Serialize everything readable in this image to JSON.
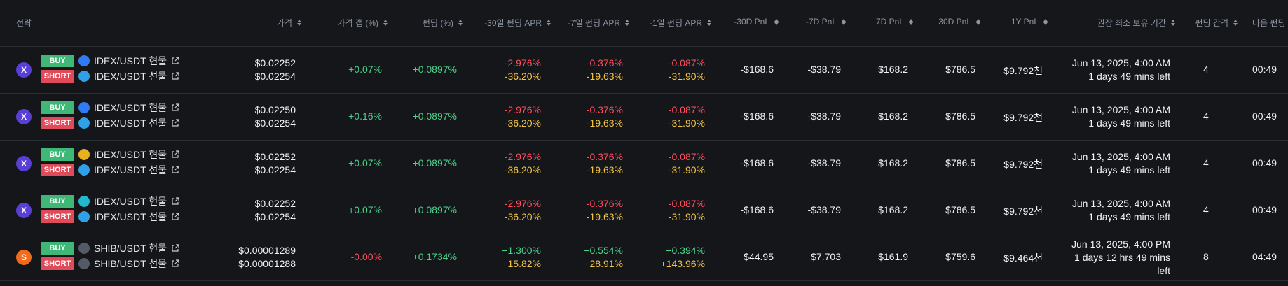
{
  "header": {
    "strategy": "전략",
    "price": "가격",
    "price_gap": "가격 갭 (%)",
    "funding": "펀딩 (%)",
    "apr30": "-30일 펀딩 APR",
    "apr7": "-7일 펀딩 APR",
    "apr1": "-1일 펀딩 APR",
    "pnl30neg": "-30D PnL",
    "pnl7neg": "-7D PnL",
    "pnl7": "7D PnL",
    "pnl30": "30D PnL",
    "pnl1y": "1Y PnL",
    "hold": "권장 최소 보유 기간",
    "interval": "펀딩 간격",
    "next": "다음 펀딩"
  },
  "rows": [
    {
      "proto_glyph": "X",
      "buy_label": "BUY",
      "short_label": "SHORT",
      "buy_pair": "IDEX/USDT 현물",
      "short_pair": "IDEX/USDT 선물",
      "buy_coin_color": "#2f7bf6",
      "short_coin_color": "#2fa1e8",
      "price1": "$0.02252",
      "price2": "$0.02254",
      "gap": "+0.07%",
      "funding": "+0.0897%",
      "apr30a": "-2.976%",
      "apr30b": "-36.20%",
      "apr7a": "-0.376%",
      "apr7b": "-19.63%",
      "apr1a": "-0.087%",
      "apr1b": "-31.90%",
      "pnl30neg": "-$168.6",
      "pnl7neg": "-$38.79",
      "pnl7": "$168.2",
      "pnl30": "$786.5",
      "pnl1y": "$9.792천",
      "hold1": "Jun 13, 2025, 4:00 AM",
      "hold2": "1 days 49 mins left",
      "interval": "4",
      "next": "00:49"
    },
    {
      "proto_glyph": "X",
      "buy_label": "BUY",
      "short_label": "SHORT",
      "buy_pair": "IDEX/USDT 현물",
      "short_pair": "IDEX/USDT 선물",
      "buy_coin_color": "#2f7bf6",
      "short_coin_color": "#2fa1e8",
      "price1": "$0.02250",
      "price2": "$0.02254",
      "gap": "+0.16%",
      "funding": "+0.0897%",
      "apr30a": "-2.976%",
      "apr30b": "-36.20%",
      "apr7a": "-0.376%",
      "apr7b": "-19.63%",
      "apr1a": "-0.087%",
      "apr1b": "-31.90%",
      "pnl30neg": "-$168.6",
      "pnl7neg": "-$38.79",
      "pnl7": "$168.2",
      "pnl30": "$786.5",
      "pnl1y": "$9.792천",
      "hold1": "Jun 13, 2025, 4:00 AM",
      "hold2": "1 days 49 mins left",
      "interval": "4",
      "next": "00:49"
    },
    {
      "proto_glyph": "X",
      "buy_label": "BUY",
      "short_label": "SHORT",
      "buy_pair": "IDEX/USDT 현물",
      "short_pair": "IDEX/USDT 선물",
      "buy_coin_color": "#e8b21e",
      "short_coin_color": "#2fa1e8",
      "price1": "$0.02252",
      "price2": "$0.02254",
      "gap": "+0.07%",
      "funding": "+0.0897%",
      "apr30a": "-2.976%",
      "apr30b": "-36.20%",
      "apr7a": "-0.376%",
      "apr7b": "-19.63%",
      "apr1a": "-0.087%",
      "apr1b": "-31.90%",
      "pnl30neg": "-$168.6",
      "pnl7neg": "-$38.79",
      "pnl7": "$168.2",
      "pnl30": "$786.5",
      "pnl1y": "$9.792천",
      "hold1": "Jun 13, 2025, 4:00 AM",
      "hold2": "1 days 49 mins left",
      "interval": "4",
      "next": "00:49"
    },
    {
      "proto_glyph": "X",
      "buy_label": "BUY",
      "short_label": "SHORT",
      "buy_pair": "IDEX/USDT 현물",
      "short_pair": "IDEX/USDT 선물",
      "buy_coin_color": "#22b8cf",
      "short_coin_color": "#2fa1e8",
      "price1": "$0.02252",
      "price2": "$0.02254",
      "gap": "+0.07%",
      "funding": "+0.0897%",
      "apr30a": "-2.976%",
      "apr30b": "-36.20%",
      "apr7a": "-0.376%",
      "apr7b": "-19.63%",
      "apr1a": "-0.087%",
      "apr1b": "-31.90%",
      "pnl30neg": "-$168.6",
      "pnl7neg": "-$38.79",
      "pnl7": "$168.2",
      "pnl30": "$786.5",
      "pnl1y": "$9.792천",
      "hold1": "Jun 13, 2025, 4:00 AM",
      "hold2": "1 days 49 mins left",
      "interval": "4",
      "next": "00:49"
    },
    {
      "proto_glyph": "S",
      "buy_label": "BUY",
      "short_label": "SHORT",
      "buy_pair": "SHIB/USDT 현물",
      "short_pair": "SHIB/USDT 선물",
      "buy_coin_color": "#555b66",
      "short_coin_color": "#555b66",
      "price1": "$0.00001289",
      "price2": "$0.00001288",
      "gap": "-0.00%",
      "funding": "+0.1734%",
      "apr30a": "+1.300%",
      "apr30b": "+15.82%",
      "apr7a": "+0.554%",
      "apr7b": "+28.91%",
      "apr1a": "+0.394%",
      "apr1b": "+143.96%",
      "pnl30neg": "$44.95",
      "pnl7neg": "$7.703",
      "pnl7": "$161.9",
      "pnl30": "$759.6",
      "pnl1y": "$9.464천",
      "hold1": "Jun 13, 2025, 4:00 PM",
      "hold2": "1 days 12 hrs 49 mins",
      "hold3": "left",
      "interval": "8",
      "next": "04:49"
    }
  ]
}
